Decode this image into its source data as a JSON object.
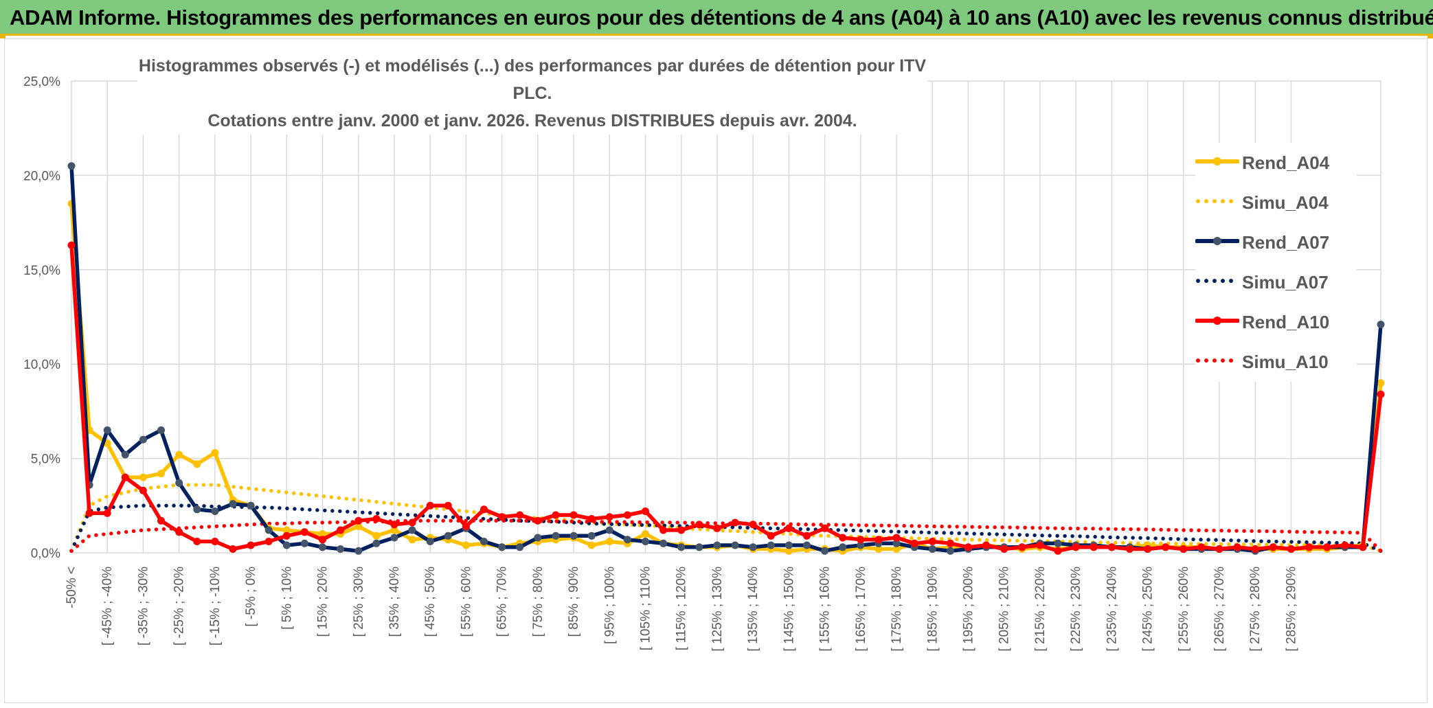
{
  "header": {
    "title": "ADAM Informe. Histogrammes des performances en euros pour des détentions de 4 ans (A04) à 10 ans (A10) avec les revenus connus distribués"
  },
  "chart_data": {
    "type": "line",
    "title_line1": "Histogrammes observés (-) et modélisés (...) des performances par durées de détention pour ITV PLC.",
    "title_line2": "Cotations entre janv. 2000 et janv. 2026. Revenus DISTRIBUES depuis avr. 2004.",
    "xlabel": "",
    "ylabel": "",
    "ylim": [
      0,
      25
    ],
    "y_ticks": [
      "0,0%",
      "5,0%",
      "10,0%",
      "15,0%",
      "20,0%",
      "25,0%"
    ],
    "x_tick_labels": [
      "-50% <",
      "[ -45% ; -40%",
      "[ -35% ; -30%",
      "[ -25% ; -20%",
      "[ -15% ; -10%",
      "[ -5% ; 0%",
      "[ 5% ; 10%",
      "[ 15% ; 20%",
      "[ 25% ; 30%",
      "[ 35% ; 40%",
      "[ 45% ; 50%",
      "[ 55% ; 60%",
      "[ 65% ; 70%",
      "[ 75% ; 80%",
      "[ 85% ; 90%",
      "[ 95% ; 100%",
      "[ 105% ; 110%",
      "[ 115% ; 120%",
      "[ 125% ; 130%",
      "[ 135% ; 140%",
      "[ 145% ; 150%",
      "[ 155% ; 160%",
      "[ 165% ; 170%",
      "[ 175% ; 180%",
      "[ 185% ; 190%",
      "[ 195% ; 200%",
      "[ 205% ; 210%",
      "[ 215% ; 220%",
      "[ 225% ; 230%",
      "[ 235% ; 240%",
      "[ 245% ; 250%",
      "[ 255% ; 260%",
      "[ 265% ; 270%",
      "[ 275% ; 280%",
      "[ 285% ; 290%"
    ],
    "legend_position": "right",
    "grid": true,
    "series": [
      {
        "name": "Rend_A04",
        "style": "solid",
        "color": "#ffc000",
        "values": [
          18.5,
          6.5,
          5.8,
          4.0,
          4.0,
          4.2,
          5.2,
          4.7,
          5.3,
          2.8,
          2.5,
          1.3,
          1.2,
          1.1,
          1.0,
          1.0,
          1.4,
          0.9,
          1.2,
          0.7,
          0.8,
          0.7,
          0.4,
          0.5,
          0.3,
          0.5,
          0.6,
          0.7,
          0.8,
          0.4,
          0.6,
          0.5,
          1.0,
          0.5,
          0.4,
          0.3,
          0.3,
          0.4,
          0.2,
          0.2,
          0.1,
          0.2,
          0.2,
          0.1,
          0.3,
          0.2,
          0.2,
          0.5,
          0.2,
          0.3,
          0.3,
          0.4,
          0.3,
          0.2,
          0.3,
          0.2,
          0.3,
          0.3,
          0.3,
          0.3,
          0.4,
          0.3,
          0.3,
          0.3,
          0.2,
          0.2,
          0.2,
          0.2,
          0.2,
          0.2,
          0.2,
          0.3,
          0.4,
          9.0
        ]
      },
      {
        "name": "Simu_A04",
        "style": "dotted",
        "color": "#ffc000",
        "values": [
          0.1,
          2.5,
          3.0,
          3.2,
          3.4,
          3.5,
          3.6,
          3.6,
          3.6,
          3.5,
          3.4,
          3.3,
          3.2,
          3.1,
          3.0,
          2.9,
          2.8,
          2.7,
          2.6,
          2.5,
          2.4,
          2.3,
          2.2,
          2.1,
          2.0,
          1.9,
          1.85,
          1.8,
          1.7,
          1.6,
          1.55,
          1.5,
          1.45,
          1.4,
          1.3,
          1.25,
          1.2,
          1.15,
          1.1,
          1.05,
          1.0,
          0.95,
          0.9,
          0.88,
          0.85,
          0.82,
          0.8,
          0.77,
          0.75,
          0.72,
          0.7,
          0.68,
          0.66,
          0.64,
          0.62,
          0.6,
          0.58,
          0.56,
          0.54,
          0.52,
          0.5,
          0.49,
          0.48,
          0.47,
          0.46,
          0.45,
          0.44,
          0.43,
          0.42,
          0.41,
          0.4,
          0.4,
          0.4,
          0.1
        ]
      },
      {
        "name": "Rend_A07",
        "style": "solid",
        "color": "#002060",
        "values": [
          20.5,
          3.6,
          6.5,
          5.2,
          6.0,
          6.5,
          3.7,
          2.3,
          2.2,
          2.6,
          2.5,
          1.2,
          0.4,
          0.5,
          0.3,
          0.2,
          0.1,
          0.5,
          0.8,
          1.2,
          0.6,
          0.9,
          1.3,
          0.6,
          0.3,
          0.3,
          0.8,
          0.9,
          0.9,
          0.9,
          1.2,
          0.7,
          0.6,
          0.5,
          0.3,
          0.3,
          0.4,
          0.4,
          0.3,
          0.4,
          0.4,
          0.4,
          0.1,
          0.3,
          0.4,
          0.5,
          0.5,
          0.3,
          0.2,
          0.1,
          0.2,
          0.3,
          0.3,
          0.3,
          0.5,
          0.5,
          0.4,
          0.4,
          0.3,
          0.3,
          0.2,
          0.3,
          0.2,
          0.2,
          0.2,
          0.2,
          0.1,
          0.3,
          0.2,
          0.3,
          0.3,
          0.3,
          0.3,
          12.1
        ]
      },
      {
        "name": "Simu_A07",
        "style": "dotted",
        "color": "#002060",
        "values": [
          0.1,
          2.2,
          2.4,
          2.45,
          2.5,
          2.5,
          2.5,
          2.5,
          2.45,
          2.45,
          2.4,
          2.4,
          2.35,
          2.3,
          2.25,
          2.2,
          2.15,
          2.1,
          2.05,
          2.0,
          1.95,
          1.9,
          1.85,
          1.8,
          1.75,
          1.7,
          1.68,
          1.65,
          1.6,
          1.55,
          1.52,
          1.5,
          1.47,
          1.45,
          1.42,
          1.4,
          1.37,
          1.35,
          1.32,
          1.3,
          1.27,
          1.25,
          1.22,
          1.2,
          1.17,
          1.15,
          1.12,
          1.1,
          1.07,
          1.05,
          1.02,
          1.0,
          0.97,
          0.95,
          0.92,
          0.9,
          0.88,
          0.85,
          0.82,
          0.8,
          0.78,
          0.75,
          0.72,
          0.7,
          0.68,
          0.65,
          0.62,
          0.6,
          0.58,
          0.56,
          0.54,
          0.52,
          0.5,
          0.1
        ]
      },
      {
        "name": "Rend_A10",
        "style": "solid",
        "color": "#ff0000",
        "values": [
          16.3,
          2.1,
          2.1,
          4.0,
          3.3,
          1.7,
          1.1,
          0.6,
          0.6,
          0.2,
          0.4,
          0.6,
          0.9,
          1.1,
          0.7,
          1.2,
          1.7,
          1.8,
          1.5,
          1.6,
          2.5,
          2.5,
          1.4,
          2.3,
          1.9,
          2.0,
          1.7,
          2.0,
          2.0,
          1.8,
          1.9,
          2.0,
          2.2,
          1.2,
          1.2,
          1.5,
          1.3,
          1.6,
          1.5,
          0.9,
          1.3,
          0.9,
          1.3,
          0.8,
          0.7,
          0.7,
          0.8,
          0.5,
          0.6,
          0.5,
          0.3,
          0.4,
          0.2,
          0.3,
          0.4,
          0.1,
          0.3,
          0.3,
          0.3,
          0.2,
          0.2,
          0.3,
          0.2,
          0.3,
          0.2,
          0.3,
          0.2,
          0.3,
          0.2,
          0.3,
          0.3,
          0.4,
          0.3,
          8.4
        ]
      },
      {
        "name": "Simu_A10",
        "style": "dotted",
        "color": "#ff0000",
        "values": [
          0.1,
          0.9,
          1.0,
          1.1,
          1.2,
          1.25,
          1.3,
          1.35,
          1.4,
          1.45,
          1.5,
          1.55,
          1.55,
          1.6,
          1.6,
          1.62,
          1.65,
          1.65,
          1.68,
          1.7,
          1.7,
          1.7,
          1.7,
          1.7,
          1.7,
          1.7,
          1.68,
          1.67,
          1.66,
          1.65,
          1.64,
          1.63,
          1.62,
          1.61,
          1.6,
          1.58,
          1.57,
          1.56,
          1.55,
          1.54,
          1.52,
          1.5,
          1.49,
          1.48,
          1.46,
          1.45,
          1.44,
          1.42,
          1.4,
          1.39,
          1.38,
          1.36,
          1.35,
          1.34,
          1.32,
          1.3,
          1.29,
          1.28,
          1.26,
          1.25,
          1.24,
          1.22,
          1.2,
          1.19,
          1.18,
          1.16,
          1.15,
          1.14,
          1.12,
          1.1,
          1.09,
          1.08,
          1.06,
          0.1
        ]
      }
    ]
  }
}
